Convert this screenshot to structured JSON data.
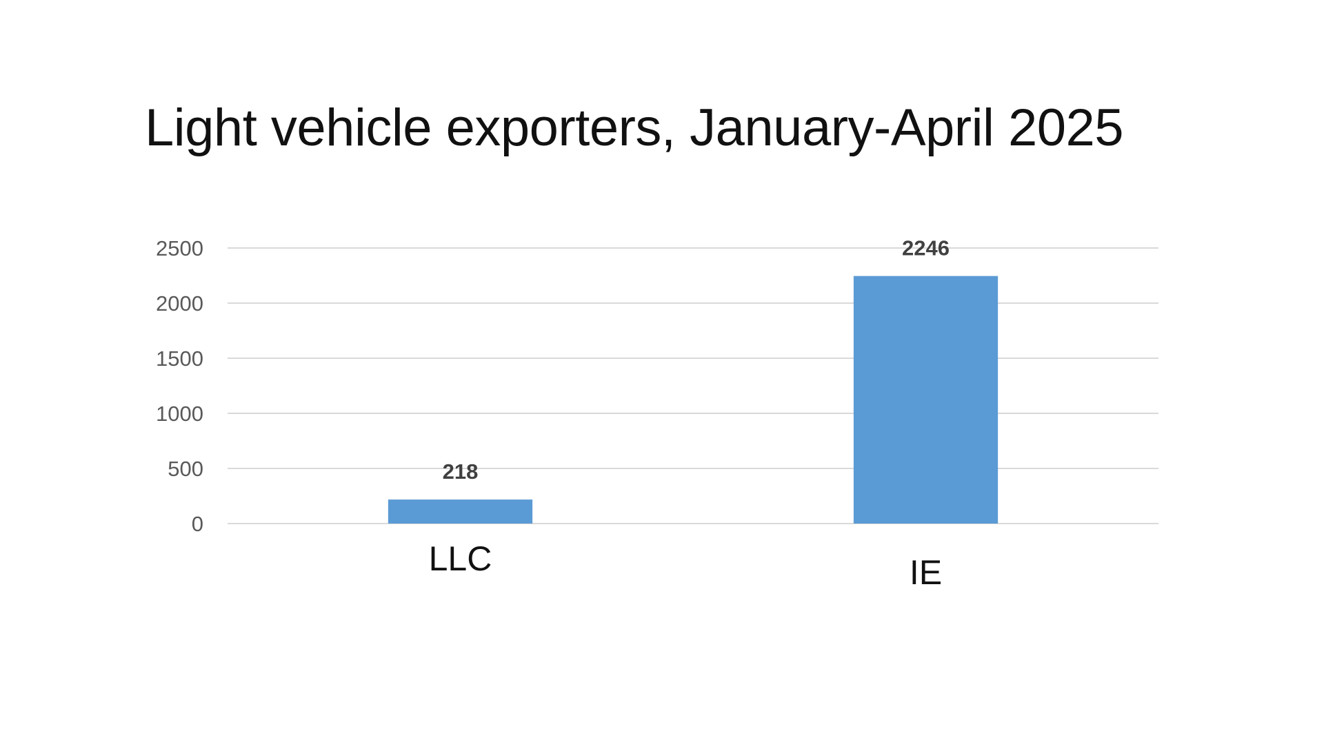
{
  "chart_data": {
    "type": "bar",
    "title": "Light vehicle exporters, January-April 2025",
    "categories": [
      "LLC",
      "IE"
    ],
    "values": [
      218,
      2246
    ],
    "data_labels": [
      "218",
      "2246"
    ],
    "ylim": [
      0,
      2500
    ],
    "yticks": [
      0,
      500,
      1000,
      1500,
      2000,
      2500
    ],
    "grid": true,
    "legend": "none",
    "colors": {
      "bar": "#5b9bd5",
      "grid": "#d9d9d9"
    }
  }
}
